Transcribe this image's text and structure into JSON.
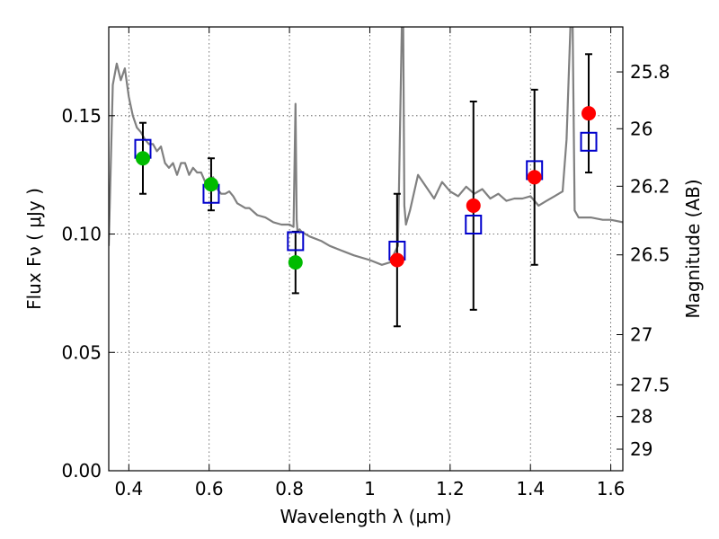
{
  "chart_data": {
    "type": "scatter",
    "xlabel": "Wavelength  λ (μm)",
    "ylabel": "Flux  Fν  ( μJy )",
    "y2label": "Magnitude (AB)",
    "xlim": [
      0.35,
      1.63
    ],
    "ylim": [
      0.0,
      0.1875
    ],
    "x_ticks": [
      0.4,
      0.6,
      0.8,
      1.0,
      1.2,
      1.4,
      1.6
    ],
    "x_tick_labels": [
      "0.4",
      "0.6",
      "0.8",
      "1",
      "1.2",
      "1.4",
      "1.6"
    ],
    "y_ticks": [
      0.0,
      0.05,
      0.1,
      0.15
    ],
    "y_tick_labels": [
      "0.00",
      "0.05",
      "0.10",
      "0.15"
    ],
    "y2_tick_labels": [
      "25.8",
      "26",
      "26.2",
      "26.5",
      "27",
      "27.5",
      "28",
      "29"
    ],
    "y2_tick_flux": [
      0.1685,
      0.1445,
      0.1202,
      0.0912,
      0.0575,
      0.0363,
      0.0229,
      0.0091
    ],
    "grid": true,
    "colors": {
      "model": "#808080",
      "model_points": "#0000cc",
      "observed_green": "#00bb00",
      "observed_red": "#ff0000",
      "errorbar": "#000000"
    },
    "model_spectrum": {
      "x": [
        0.35,
        0.36,
        0.37,
        0.38,
        0.39,
        0.4,
        0.41,
        0.42,
        0.43,
        0.44,
        0.45,
        0.46,
        0.47,
        0.48,
        0.49,
        0.5,
        0.51,
        0.52,
        0.53,
        0.54,
        0.55,
        0.56,
        0.57,
        0.58,
        0.59,
        0.6,
        0.61,
        0.62,
        0.63,
        0.64,
        0.65,
        0.66,
        0.67,
        0.68,
        0.69,
        0.7,
        0.72,
        0.74,
        0.76,
        0.78,
        0.8,
        0.81,
        0.815,
        0.818,
        0.82,
        0.825,
        0.83,
        0.85,
        0.88,
        0.9,
        0.93,
        0.96,
        1.0,
        1.03,
        1.05,
        1.07,
        1.08,
        1.083,
        1.086,
        1.09,
        1.1,
        1.12,
        1.14,
        1.16,
        1.18,
        1.2,
        1.22,
        1.24,
        1.26,
        1.28,
        1.3,
        1.32,
        1.34,
        1.36,
        1.38,
        1.4,
        1.42,
        1.44,
        1.46,
        1.48,
        1.49,
        1.5,
        1.505,
        1.51,
        1.52,
        1.55,
        1.58,
        1.6,
        1.63
      ],
      "y": [
        0.095,
        0.163,
        0.172,
        0.165,
        0.17,
        0.158,
        0.15,
        0.145,
        0.143,
        0.14,
        0.138,
        0.138,
        0.135,
        0.137,
        0.13,
        0.128,
        0.13,
        0.125,
        0.13,
        0.13,
        0.125,
        0.128,
        0.126,
        0.126,
        0.122,
        0.122,
        0.124,
        0.119,
        0.117,
        0.117,
        0.118,
        0.116,
        0.113,
        0.112,
        0.111,
        0.111,
        0.108,
        0.107,
        0.105,
        0.104,
        0.104,
        0.103,
        0.155,
        0.106,
        0.101,
        0.102,
        0.101,
        0.099,
        0.097,
        0.095,
        0.093,
        0.091,
        0.089,
        0.087,
        0.088,
        0.095,
        0.19,
        0.19,
        0.112,
        0.104,
        0.11,
        0.125,
        0.12,
        0.115,
        0.122,
        0.118,
        0.116,
        0.12,
        0.117,
        0.119,
        0.115,
        0.117,
        0.114,
        0.115,
        0.115,
        0.116,
        0.112,
        0.114,
        0.116,
        0.118,
        0.14,
        0.19,
        0.19,
        0.11,
        0.107,
        0.107,
        0.106,
        0.106,
        0.105
      ]
    },
    "series": [
      {
        "marker": "open-square",
        "x": [
          0.435,
          0.605,
          0.815,
          1.068,
          1.258,
          1.41,
          1.545
        ],
        "values": [
          0.136,
          0.117,
          0.097,
          0.093,
          0.104,
          0.127,
          0.139
        ]
      },
      {
        "marker": "filled-circle",
        "x": [
          0.435,
          0.605,
          0.815
        ],
        "values": [
          0.132,
          0.121,
          0.088
        ],
        "errors": [
          0.015,
          0.011,
          0.013
        ]
      },
      {
        "marker": "filled-circle",
        "x": [
          1.068,
          1.258,
          1.41,
          1.545
        ],
        "values": [
          0.089,
          0.112,
          0.124,
          0.151
        ],
        "errors": [
          0.028,
          0.044,
          0.037,
          0.025
        ]
      }
    ]
  }
}
